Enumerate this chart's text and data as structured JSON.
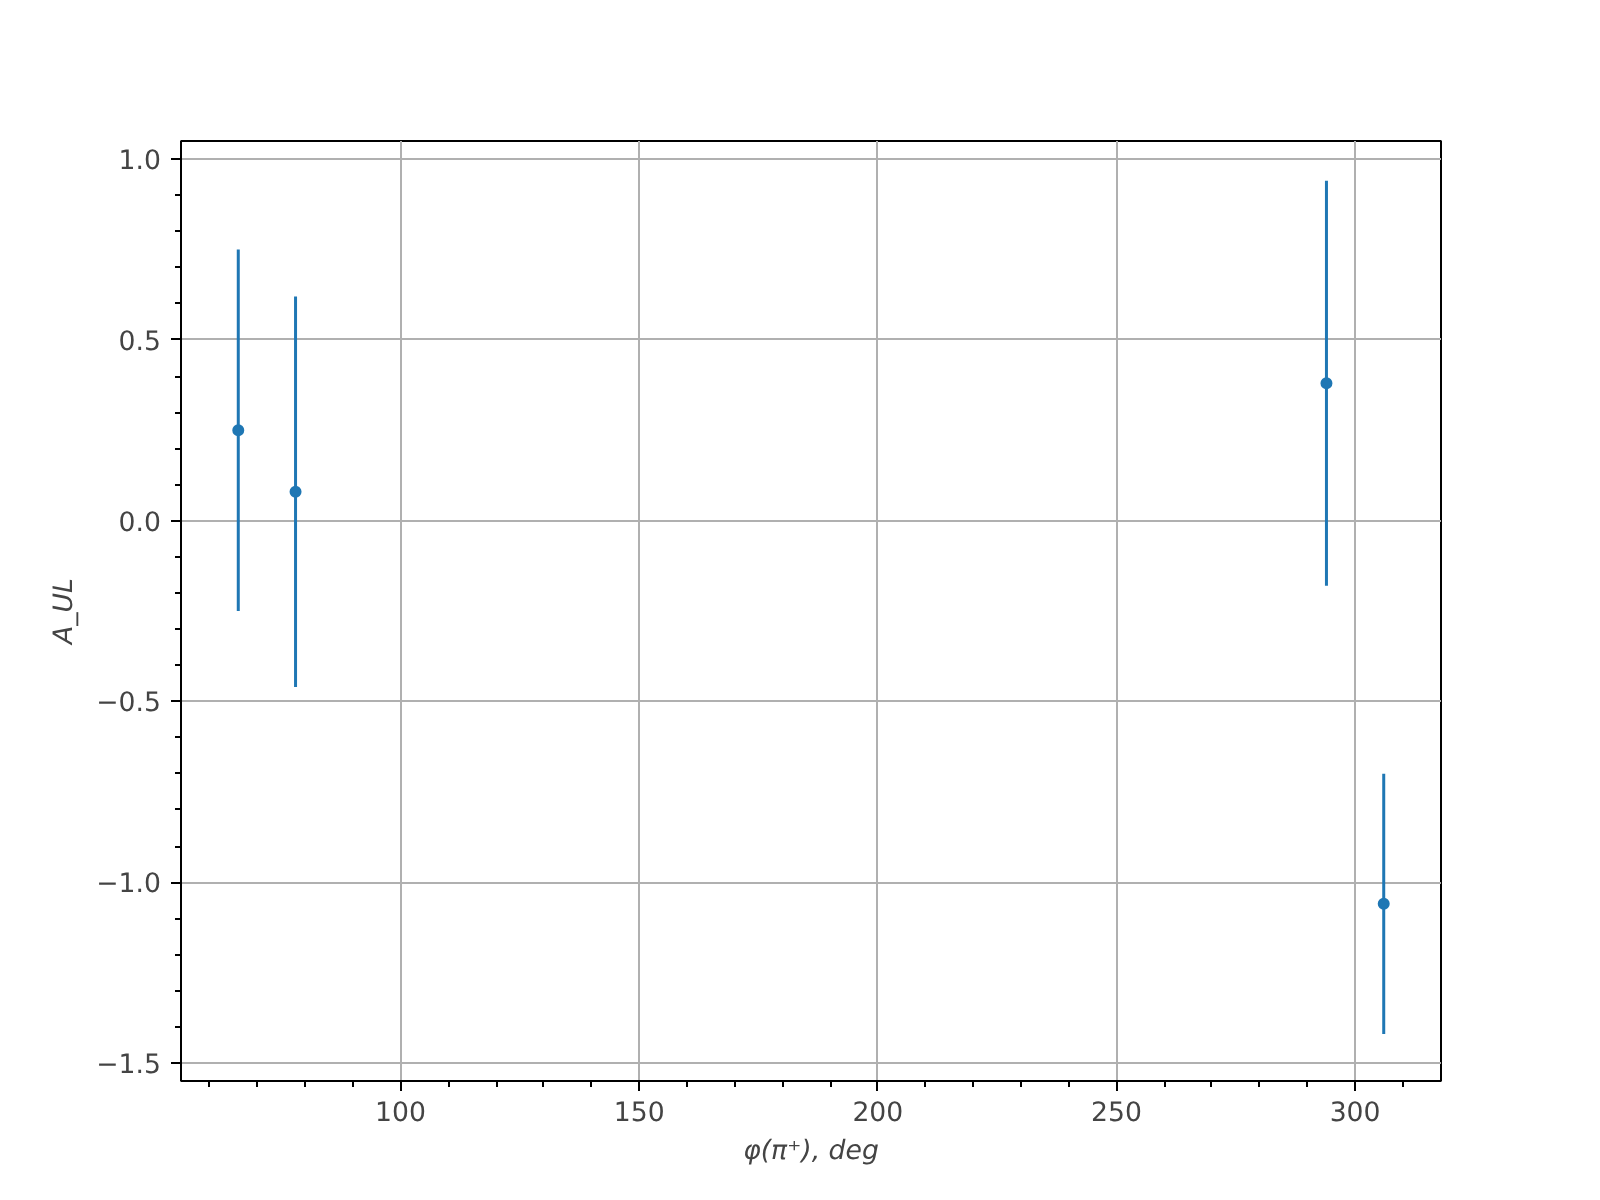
{
  "chart_data": {
    "type": "scatter",
    "xlabel": "φ(π⁺), deg",
    "ylabel": "A_UL",
    "x": [
      66,
      78,
      294,
      306
    ],
    "series": [
      {
        "color": "#1f77b4",
        "values": [
          0.25,
          0.08,
          0.38,
          -1.06
        ],
        "errors": [
          0.5,
          0.54,
          0.56,
          0.36
        ]
      }
    ],
    "xlim": [
      54,
      318
    ],
    "ylim": [
      -1.55,
      1.05
    ],
    "xticks": [
      100,
      150,
      200,
      250,
      300
    ],
    "yticks": [
      {
        "value": -1.5,
        "label": "−1.5"
      },
      {
        "value": -1.0,
        "label": "−1.0"
      },
      {
        "value": -0.5,
        "label": "−0.5"
      },
      {
        "value": 0.0,
        "label": "0.0"
      },
      {
        "value": 0.5,
        "label": "0.5"
      },
      {
        "value": 1.0,
        "label": "1.0"
      }
    ],
    "grid": true,
    "marker": "circle"
  }
}
